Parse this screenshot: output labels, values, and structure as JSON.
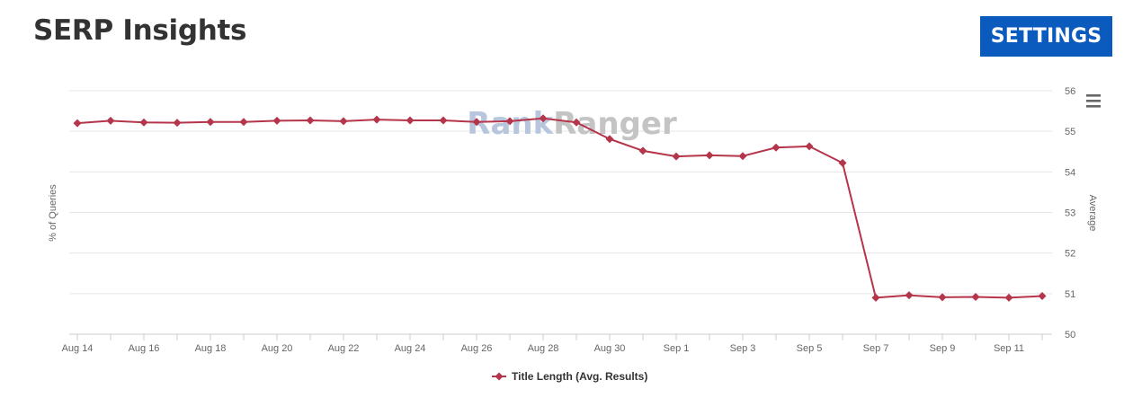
{
  "header": {
    "title": "SERP Insights",
    "settings_label": "SETTINGS"
  },
  "icons": {
    "chart_menu": "hamburger-menu-icon"
  },
  "watermark": {
    "part1": "Rank",
    "part2": "Ranger",
    "color1": "#b8c6dd",
    "color2": "#c4c4c4"
  },
  "colors": {
    "series": "#b5354a",
    "button": "#0a5bbd",
    "title": "#333333"
  },
  "chart_data": {
    "type": "line",
    "x": [
      "Aug 14",
      "Aug 15",
      "Aug 16",
      "Aug 17",
      "Aug 18",
      "Aug 19",
      "Aug 20",
      "Aug 21",
      "Aug 22",
      "Aug 23",
      "Aug 24",
      "Aug 25",
      "Aug 26",
      "Aug 27",
      "Aug 28",
      "Aug 29",
      "Aug 30",
      "Aug 31",
      "Sep 1",
      "Sep 2",
      "Sep 3",
      "Sep 4",
      "Sep 5",
      "Sep 6",
      "Sep 7",
      "Sep 8",
      "Sep 9",
      "Sep 10",
      "Sep 11",
      "Sep 12"
    ],
    "x_tick_labels": [
      "Aug 14",
      "Aug 16",
      "Aug 18",
      "Aug 20",
      "Aug 22",
      "Aug 24",
      "Aug 26",
      "Aug 28",
      "Aug 30",
      "Sep 1",
      "Sep 3",
      "Sep 5",
      "Sep 7",
      "Sep 9",
      "Sep 11"
    ],
    "series": [
      {
        "name": "Title Length (Avg. Results)",
        "values": [
          55.2,
          55.26,
          55.22,
          55.21,
          55.23,
          55.23,
          55.26,
          55.27,
          55.25,
          55.29,
          55.27,
          55.27,
          55.23,
          55.25,
          55.32,
          55.22,
          54.81,
          54.52,
          54.38,
          54.41,
          54.39,
          54.6,
          54.63,
          54.22,
          50.9,
          50.96,
          50.91,
          50.92,
          50.9,
          50.94
        ]
      }
    ],
    "ylabel_left": "% of Queries",
    "ylabel_right": "Average",
    "y_right_ticks": [
      50,
      51,
      52,
      53,
      54,
      55,
      56
    ],
    "ylim": [
      50,
      56
    ],
    "grid": true,
    "legend_position": "bottom-center"
  }
}
